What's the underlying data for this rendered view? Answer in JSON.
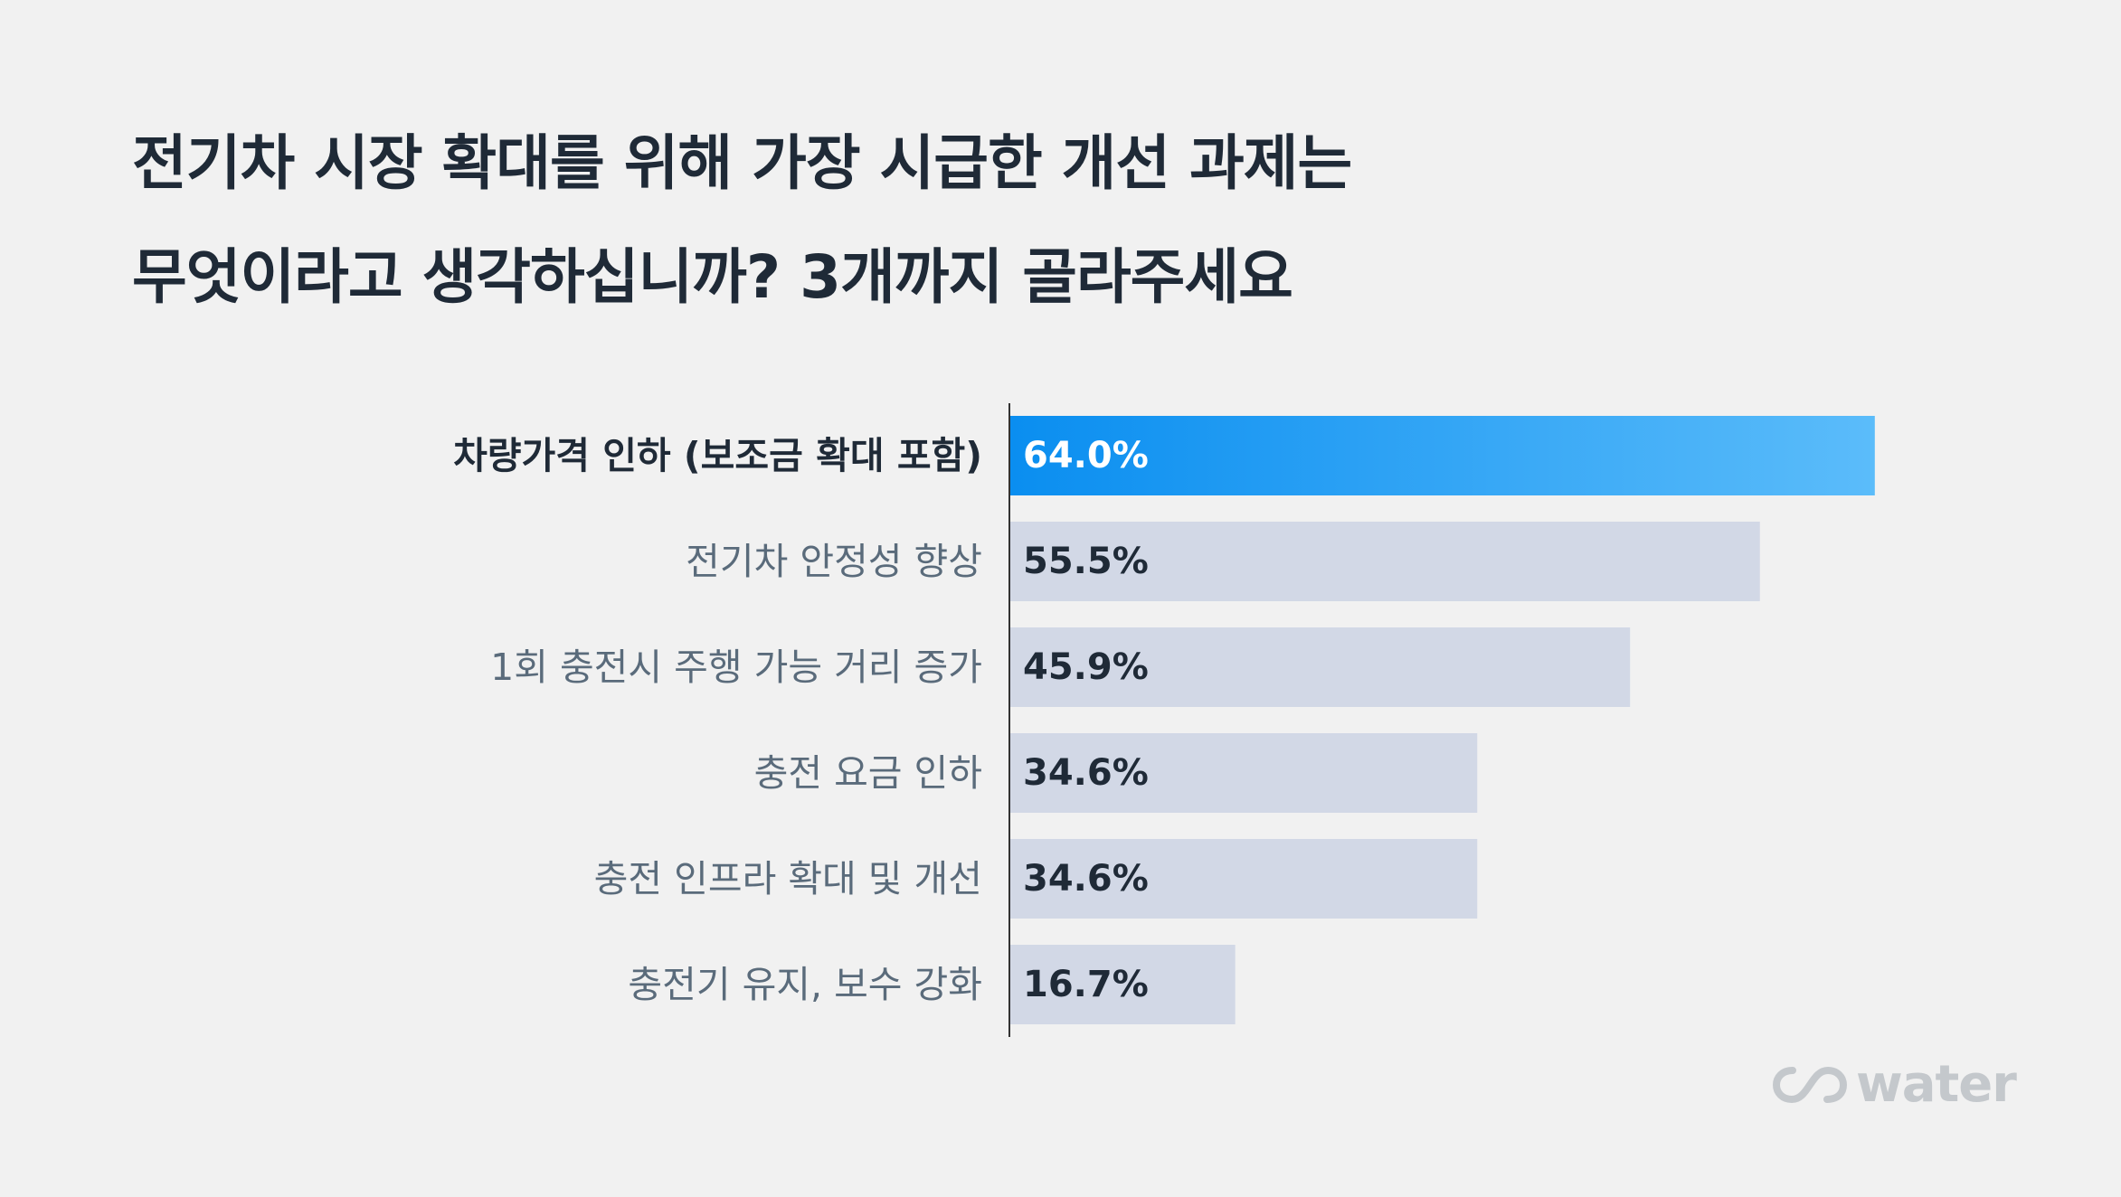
{
  "title_lines": [
    "전기차 시장 확대를 위해 가장 시급한 개선 과제는",
    "무엇이라고 생각하십니까? 3개까지 골라주세요"
  ],
  "chart_data": {
    "type": "bar",
    "orientation": "horizontal",
    "categories": [
      "차량가격 인하 (보조금 확대 포함)",
      "전기차 안정성 향상",
      "1회 충전시 주행 가능 거리 증가",
      "충전 요금 인하",
      "충전 인프라 확대 및 개선",
      "충전기 유지, 보수 강화"
    ],
    "values": [
      64.0,
      55.5,
      45.9,
      34.6,
      34.6,
      16.7
    ],
    "value_labels": [
      "64.0%",
      "55.5%",
      "45.9%",
      "34.6%",
      "34.6%",
      "16.7%"
    ],
    "highlight_index": 0,
    "xlim": [
      0,
      100
    ],
    "grid": false,
    "colors": {
      "highlight_start": "#0a8ef0",
      "highlight_end": "#5bbcfa",
      "bar": "#d2d8e6",
      "axis": "#333333"
    }
  },
  "logo": {
    "text": "water",
    "mark_icon": "infinity-loop-icon"
  }
}
